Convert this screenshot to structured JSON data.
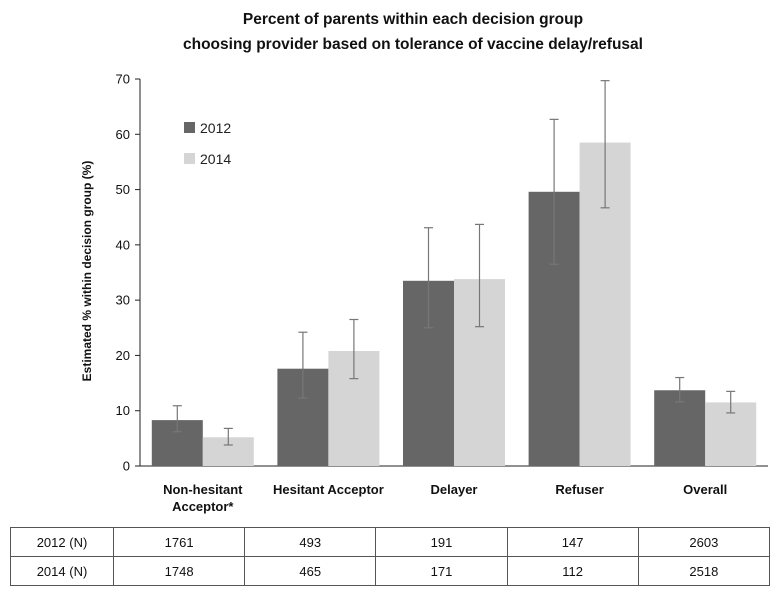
{
  "chart_data": {
    "type": "bar",
    "title": [
      "Percent of parents within each decision group",
      "choosing provider based on tolerance of vaccine delay/refusal"
    ],
    "ylabel": "Estimated % within decision group (%)",
    "xlabel": "",
    "ylim": [
      0,
      70
    ],
    "yticks": [
      0,
      10,
      20,
      30,
      40,
      50,
      60,
      70
    ],
    "categories": [
      [
        "Non-hesitant",
        "Acceptor*"
      ],
      [
        "Hesitant Acceptor"
      ],
      [
        "Delayer"
      ],
      [
        "Refuser"
      ],
      [
        "Overall"
      ]
    ],
    "series": [
      {
        "name": "2012",
        "color": "#666666",
        "values": [
          8.3,
          17.6,
          33.5,
          49.6,
          13.7
        ],
        "error_low": [
          6.2,
          12.3,
          25.0,
          36.5,
          11.6
        ],
        "error_high": [
          10.9,
          24.2,
          43.1,
          62.7,
          16.0
        ]
      },
      {
        "name": "2014",
        "color": "#d5d5d5",
        "values": [
          5.2,
          20.8,
          33.8,
          58.5,
          11.5
        ],
        "error_low": [
          3.8,
          15.8,
          25.2,
          46.7,
          9.6
        ],
        "error_high": [
          6.8,
          26.5,
          43.7,
          69.7,
          13.5
        ]
      }
    ],
    "error_bar_color": "#777777",
    "legend_position": "top-left",
    "grid": false
  },
  "n_table": {
    "rows": [
      {
        "label": "2012 (N)",
        "values": [
          "1761",
          "493",
          "191",
          "147",
          "2603"
        ]
      },
      {
        "label": "2014 (N)",
        "values": [
          "1748",
          "465",
          "171",
          "112",
          "2518"
        ]
      }
    ]
  }
}
